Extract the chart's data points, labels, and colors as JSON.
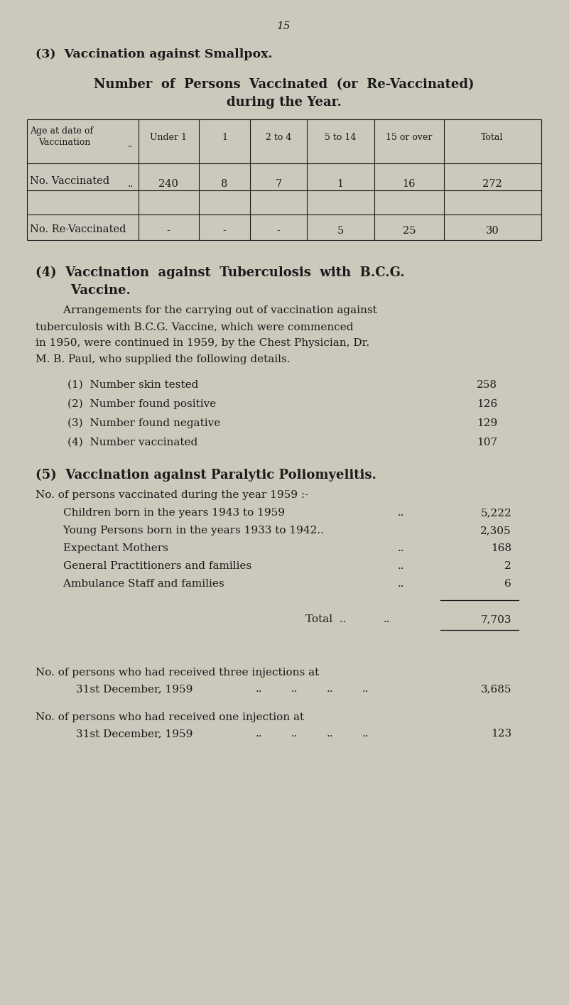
{
  "bg_color": "#cbc8bc",
  "text_color": "#1a1a1a",
  "page_number": "15",
  "section3_title": "(3)  Vaccination against Smallpox.",
  "table_subtitle1": "Number  of  Persons  Vaccinated  (or  Re-Vaccinated)",
  "table_subtitle2": "during the Year.",
  "table_col_headers": [
    "Under 1",
    "1",
    "2 to 4",
    "5 to 14",
    "15 or over",
    "Total"
  ],
  "table_row1_label": "No. Vaccinated",
  "table_row1_values": [
    "240",
    "8",
    "7",
    "1",
    "16",
    "272"
  ],
  "table_row2_label": "No. Re-Vaccinated",
  "table_row2_values": [
    "-",
    "-",
    "-",
    "5",
    "25",
    "30"
  ],
  "section4_title1": "(4)  Vaccination  against  Tuberculosis  with  B.C.G.",
  "section4_title2": "        Vaccine.",
  "section4_para_lines": [
    "        Arrangements for the carrying out of vaccination against",
    "tuberculosis with B.C.G. Vaccine, which were commenced",
    "in 1950, were continued in 1959, by the Chest Physician, Dr.",
    "M. B. Paul, who supplied the following details."
  ],
  "bcg_items": [
    [
      "(1)  Number skin tested",
      "258"
    ],
    [
      "(2)  Number found positive",
      "126"
    ],
    [
      "(3)  Number found negative",
      "129"
    ],
    [
      "(4)  Number vaccinated",
      "107"
    ]
  ],
  "section5_title": "(5)  Vaccination against Paralytic Poliomyelitis.",
  "section5_intro": "No. of persons vaccinated during the year 1959 :-",
  "polio_items": [
    [
      "        Children born in the years 1943 to 1959",
      "..",
      "5,222"
    ],
    [
      "        Young Persons born in the years 1933 to 1942..",
      "",
      "2,305"
    ],
    [
      "        Expectant Mothers",
      "..",
      "168"
    ],
    [
      "        General Practitioners and families",
      "..",
      "2"
    ],
    [
      "        Ambulance Staff and families",
      "..",
      "6"
    ]
  ],
  "total_value": "7,703",
  "three_inj_line1": "No. of persons who had received three injections at",
  "three_inj_line2": "        31st December, 1959",
  "three_inj_dots": "  ..          ..          ..          ..",
  "three_inj_value": "3,685",
  "one_inj_line1": "No. of persons who had received one injection at",
  "one_inj_line2": "        31st December, 1959",
  "one_inj_dots": "  ..          ..          ..          ..",
  "one_inj_value": "123"
}
